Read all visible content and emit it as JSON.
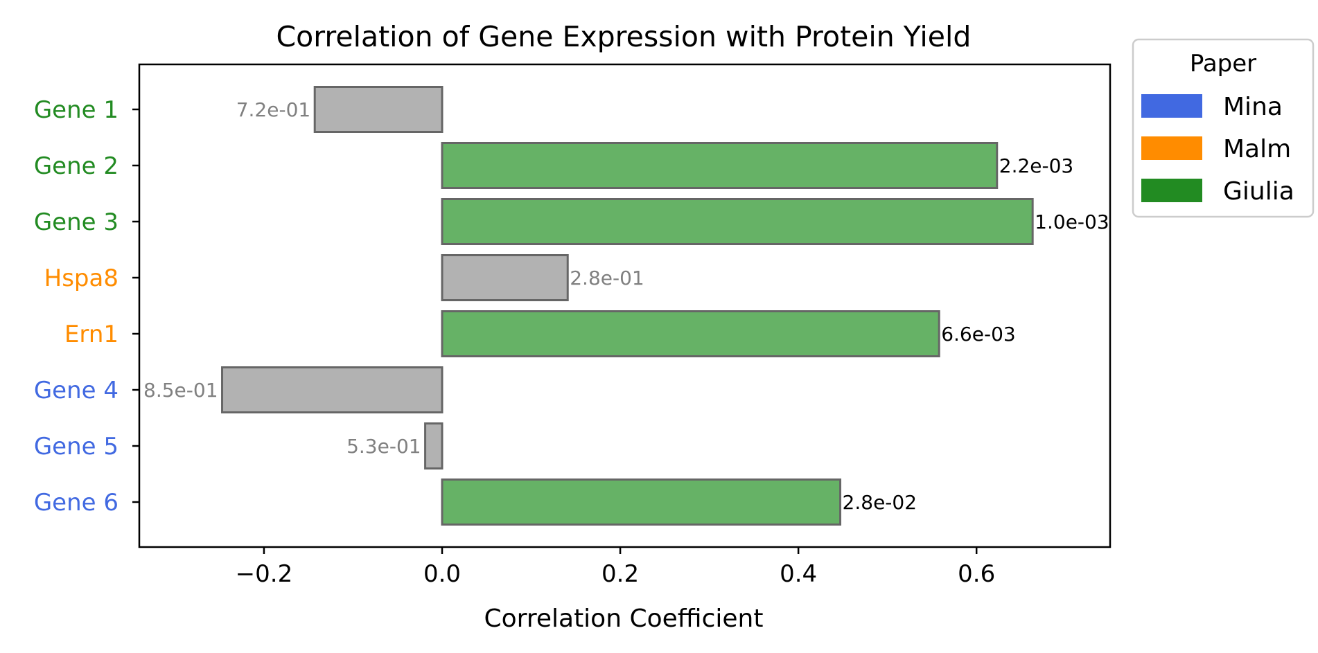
{
  "chart_data": {
    "type": "bar",
    "orientation": "horizontal",
    "title": "Correlation of Gene Expression with Protein Yield",
    "xlabel": "Correlation Coefficient",
    "ylabel": "",
    "xlim": [
      -0.34,
      0.75
    ],
    "xticks": [
      -0.2,
      0.0,
      0.2,
      0.4,
      0.6
    ],
    "xtick_labels": [
      "−0.2",
      "0.0",
      "0.2",
      "0.4",
      "0.6"
    ],
    "grid": false,
    "categories": [
      "Gene 1",
      "Gene 2",
      "Gene 3",
      "Hspa8",
      "Ern1",
      "Gene 4",
      "Gene 5",
      "Gene 6"
    ],
    "category_papers": [
      "Giulia",
      "Giulia",
      "Giulia",
      "Malm",
      "Malm",
      "Mina",
      "Mina",
      "Mina"
    ],
    "values": [
      -0.143,
      0.623,
      0.663,
      0.141,
      0.558,
      -0.247,
      -0.019,
      0.447
    ],
    "bar_labels": [
      "7.2e-01",
      "2.2e-03",
      "1.0e-03",
      "2.8e-01",
      "6.6e-03",
      "8.5e-01",
      "5.3e-01",
      "2.8e-02"
    ],
    "significant": [
      false,
      true,
      true,
      false,
      true,
      false,
      false,
      true
    ],
    "colors": {
      "significant_bar": "#66b266",
      "nonsignificant_bar": "#b2b2b2",
      "bar_edge": "#666666",
      "significant_label": "#000000",
      "nonsignificant_label": "#808080"
    },
    "legend": {
      "title": "Paper",
      "placement": "outside-top-right",
      "entries": [
        {
          "name": "Mina",
          "color": "#4169e1"
        },
        {
          "name": "Malm",
          "color": "#ff8c00"
        },
        {
          "name": "Giulia",
          "color": "#228b22"
        }
      ]
    }
  }
}
